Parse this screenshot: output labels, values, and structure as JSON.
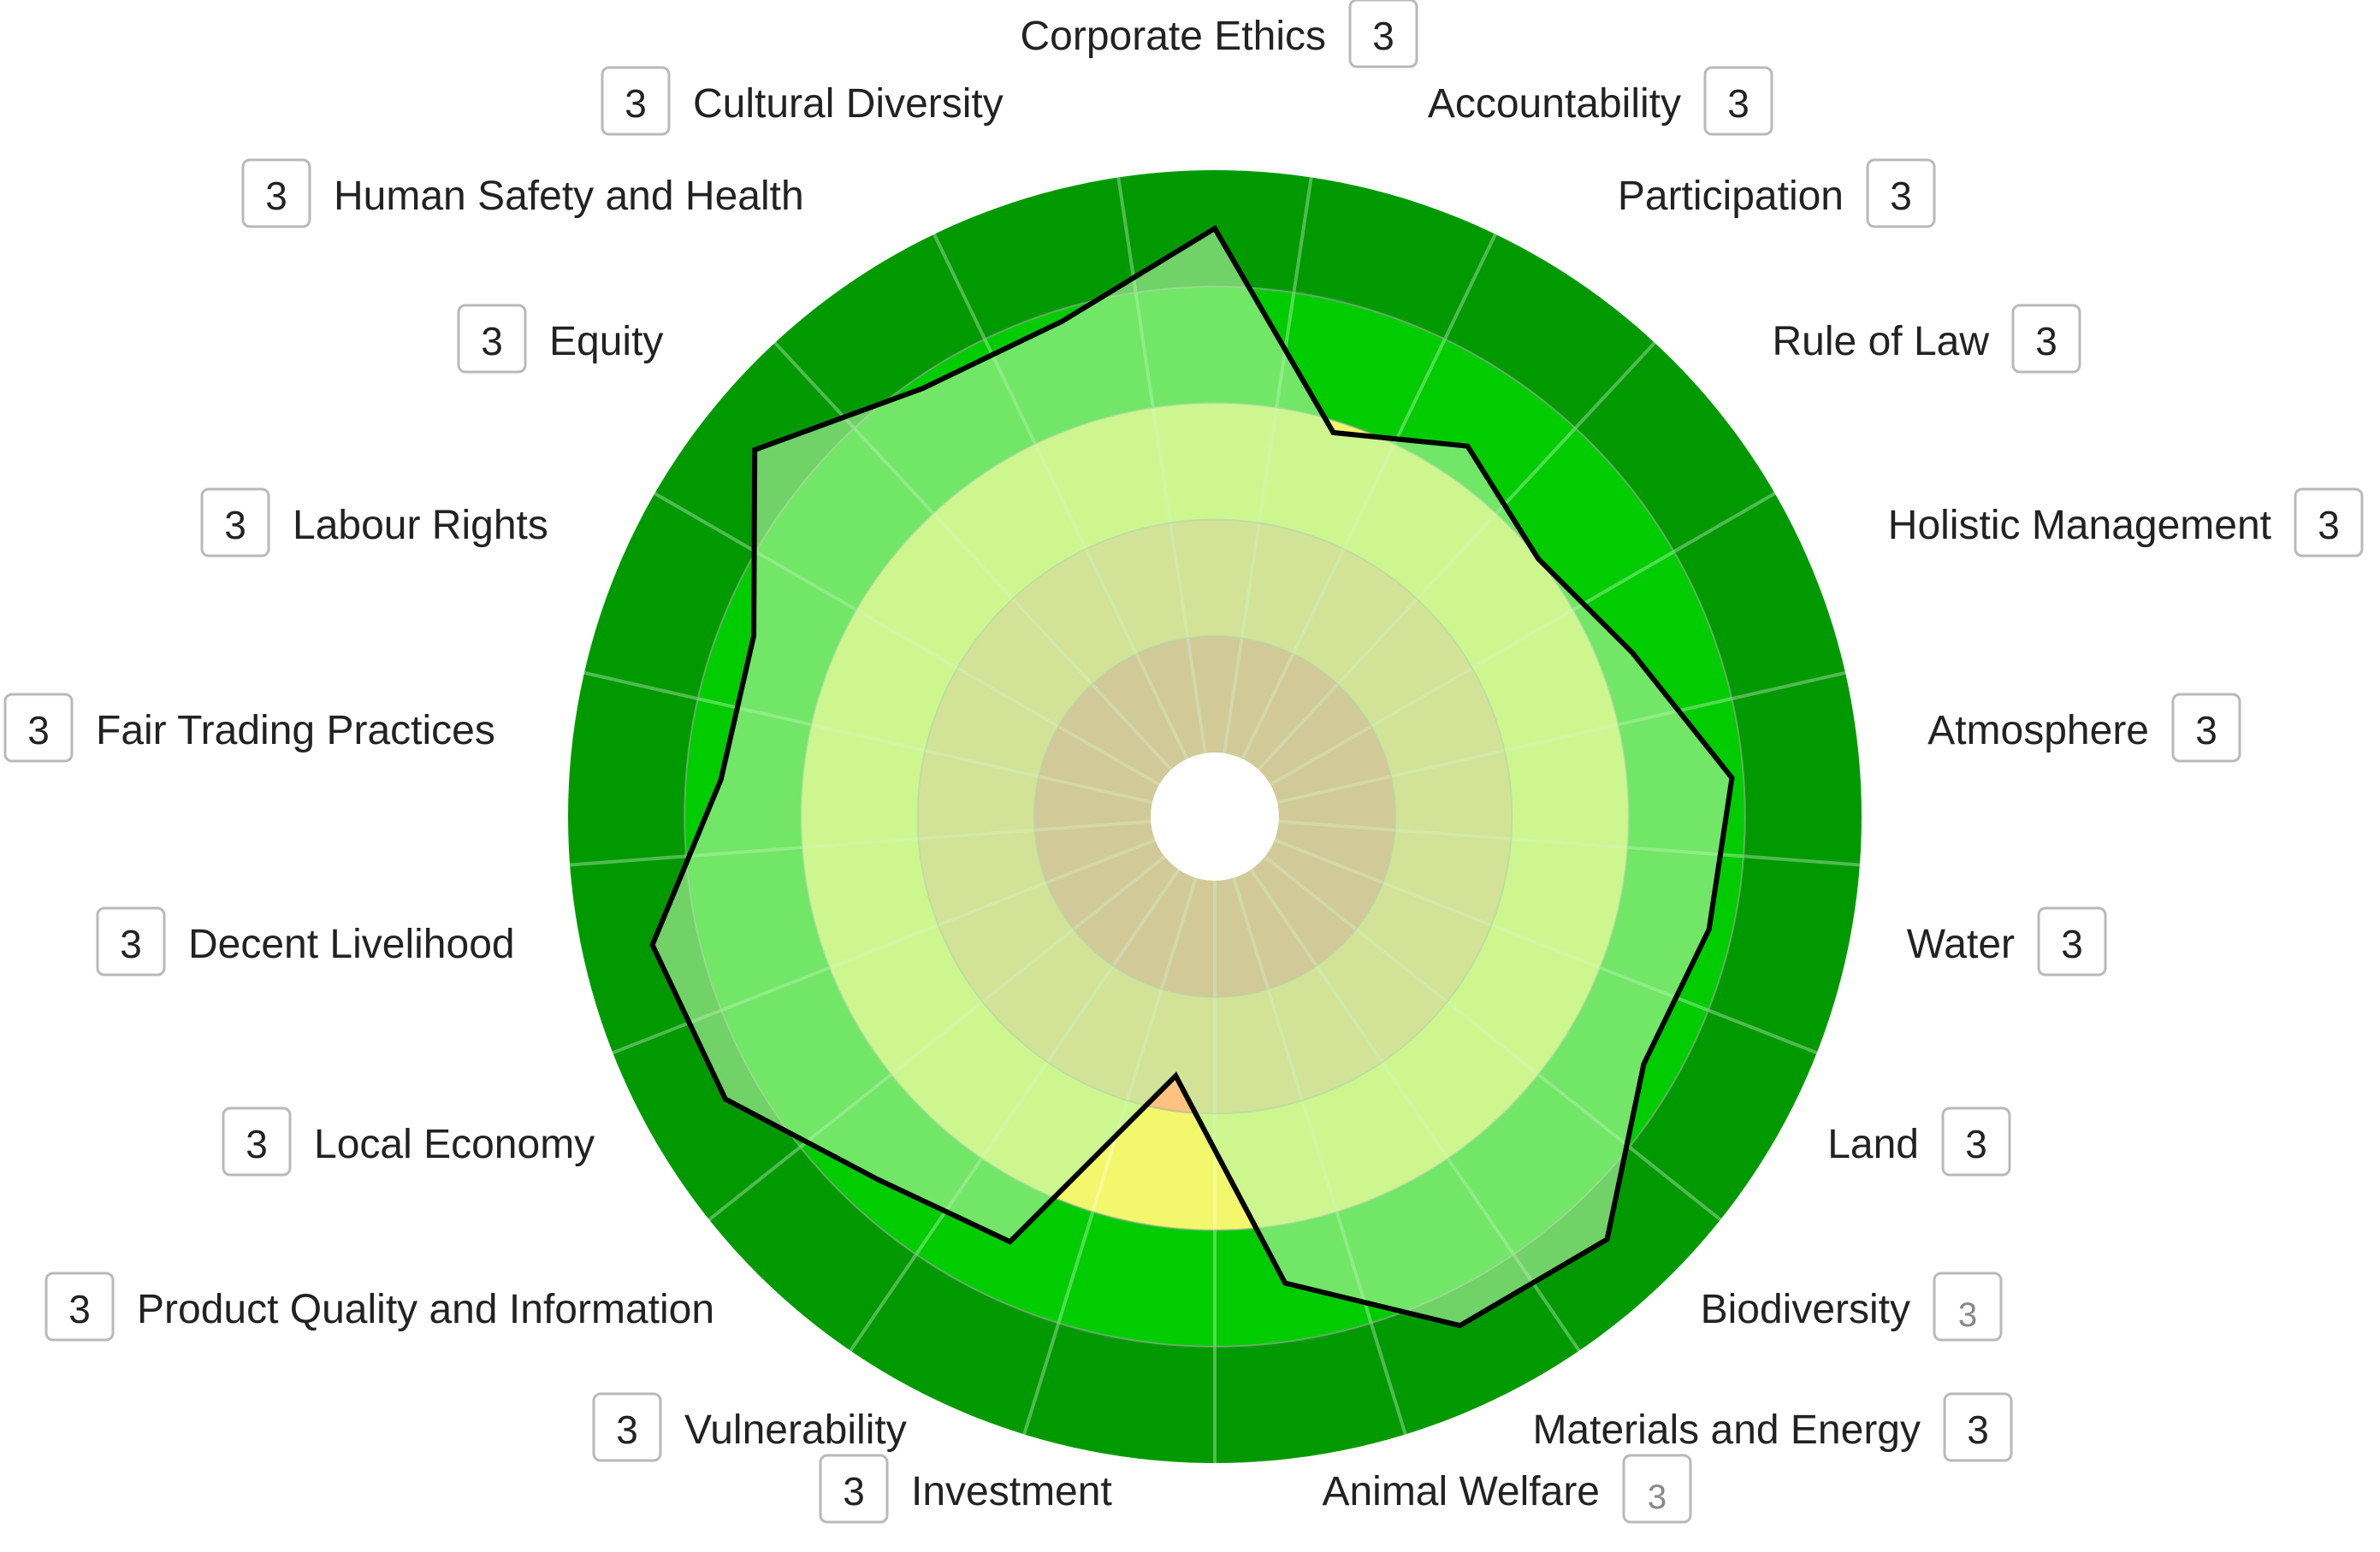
{
  "chart_data": {
    "type": "radar",
    "title": "",
    "band_colors": [
      "#ff8080",
      "#ffc37f",
      "#f3f76b",
      "#00cc00",
      "#009a00"
    ],
    "bands_are_levels": [
      1,
      2,
      3,
      4,
      5
    ],
    "max_value": 5,
    "categories": [
      {
        "label": "Corporate Ethics",
        "box": "3"
      },
      {
        "label": "Accountability",
        "box": "3"
      },
      {
        "label": "Participation",
        "box": "3"
      },
      {
        "label": "Rule of Law",
        "box": "3"
      },
      {
        "label": "Holistic Management",
        "box": "3"
      },
      {
        "label": "Atmosphere",
        "box": "3"
      },
      {
        "label": "Water",
        "box": "3"
      },
      {
        "label": "Land",
        "box": "3"
      },
      {
        "label": "Biodiversity",
        "box": "3"
      },
      {
        "label": "Materials and Energy",
        "box": "3"
      },
      {
        "label": "Animal Welfare",
        "box": "3"
      },
      {
        "label": "Investment",
        "box": "3"
      },
      {
        "label": "Vulnerability",
        "box": "3"
      },
      {
        "label": "Product Quality and Information",
        "box": "3"
      },
      {
        "label": "Local Economy",
        "box": "3"
      },
      {
        "label": "Decent Livelihood",
        "box": "3"
      },
      {
        "label": "Fair Trading Practices",
        "box": "3"
      },
      {
        "label": "Labour Rights",
        "box": "3"
      },
      {
        "label": "Equity",
        "box": "3"
      },
      {
        "label": "Human Safety and Health",
        "box": "3"
      },
      {
        "label": "Cultural Diversity",
        "box": "3"
      }
    ],
    "series": [
      {
        "values": [
          4.5,
          2.9,
          3.3,
          3.0,
          3.3,
          3.9,
          3.8,
          3.7,
          4.4,
          4.3,
          3.5,
          1.7,
          3.5,
          3.7,
          4.3,
          4.4,
          3.7,
          3.7,
          4.5,
          3.9,
          3.9
        ],
        "fill": "#b7f5a6",
        "stroke": "#000000"
      }
    ],
    "grid": true,
    "legend": "none"
  }
}
